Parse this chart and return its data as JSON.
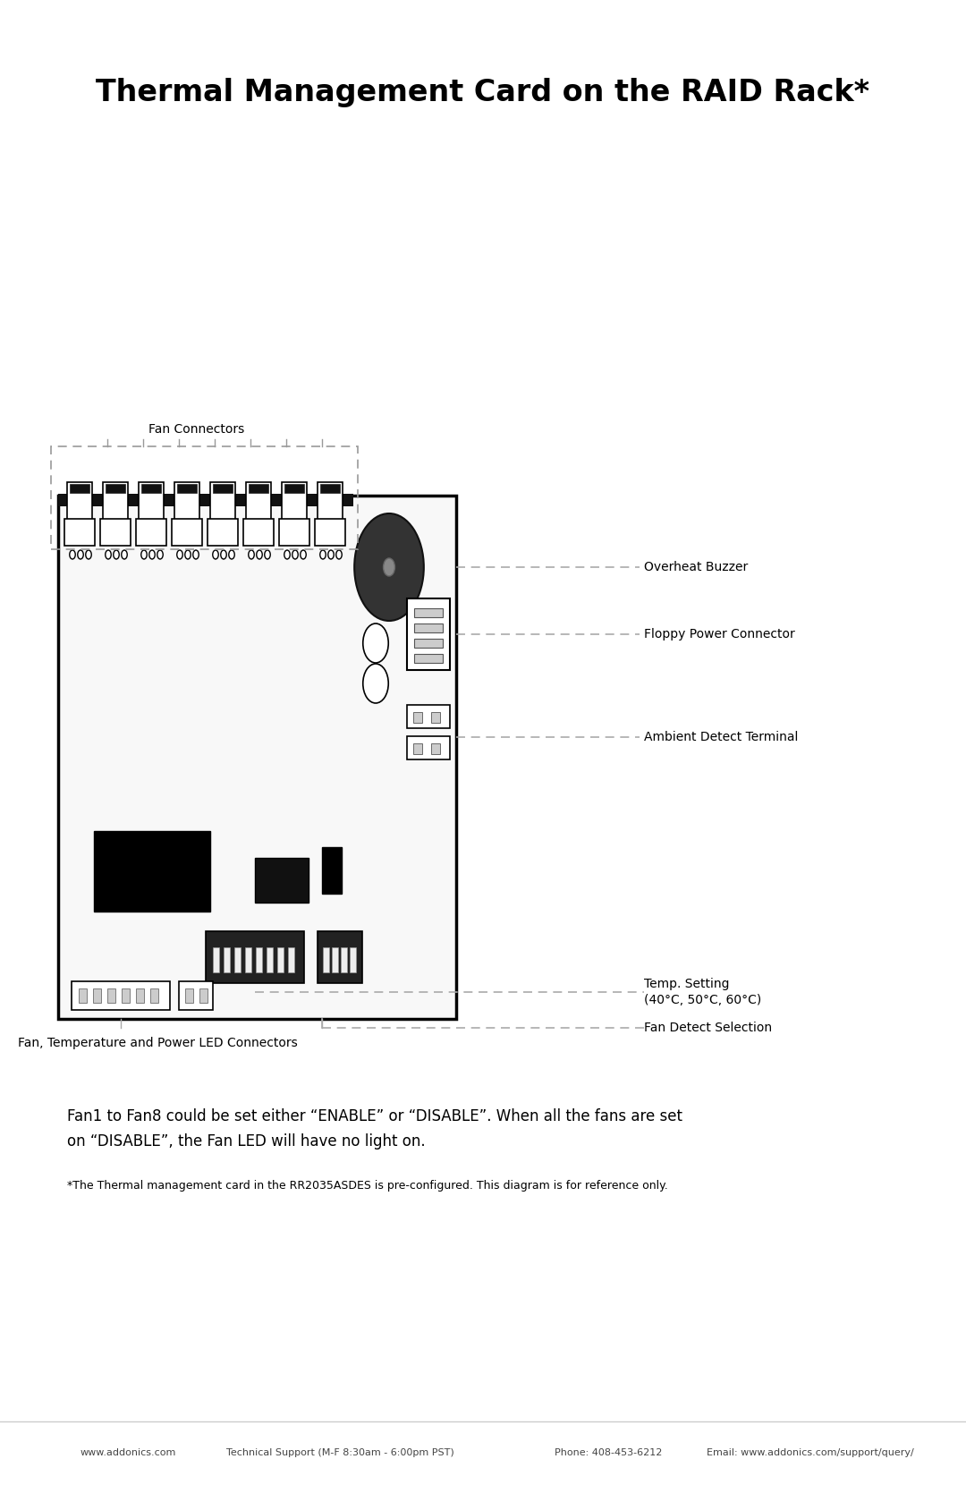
{
  "title": "Thermal Management Card on the RAID Rack*",
  "title_fontsize": 24,
  "title_fontweight": "bold",
  "bg_color": "#ffffff",
  "labels": {
    "fan_connectors": "Fan Connectors",
    "overheat_buzzer": "Overheat Buzzer",
    "floppy_power": "Floppy Power Connector",
    "ambient_detect": "Ambient Detect Terminal",
    "temp_setting": "Temp. Setting\n(40°C, 50°C, 60°C)",
    "fan_detect": "Fan Detect Selection",
    "fan_led": "Fan, Temperature and Power LED Connectors"
  },
  "body_text": "Fan1 to Fan8 could be set either “ENABLE” or “DISABLE”. When all the fans are set\non “DISABLE”, the Fan LED will have no light on.",
  "footnote": "*The Thermal management card in the RR2035ASDES is pre-configured. This diagram is for reference only.",
  "footer_left": "www.addonics.com",
  "footer_mid": "Technical Support (M-F 8:30am - 6:00pm PST)",
  "footer_phone": "Phone: 408-453-6212",
  "footer_email": "Email: www.addonics.com/support/query/"
}
